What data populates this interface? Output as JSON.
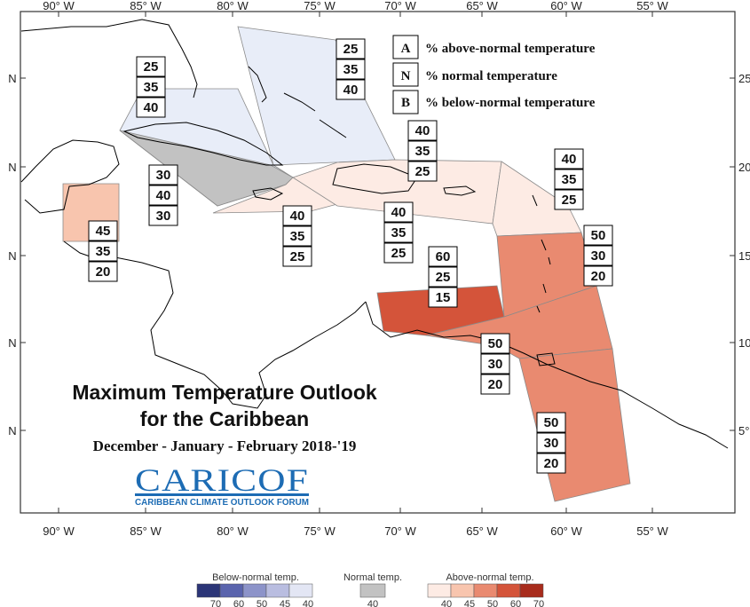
{
  "map": {
    "lon_ticks_top": [
      "90° W",
      "85° W",
      "80° W",
      "75° W",
      "70° W",
      "65° W",
      "60° W",
      "55° W"
    ],
    "lon_ticks_bottom": [
      "90° W",
      "85° W",
      "80° W",
      "75° W",
      "70° W",
      "65° W",
      "60° W",
      "55° W"
    ],
    "lat_ticks_left": [
      "N",
      "N",
      "N",
      "N",
      "N"
    ],
    "lat_ticks_right": [
      "25°",
      "20°",
      "15°",
      "10°",
      "5°"
    ],
    "frame_color": "#333333",
    "coast_color": "#000000"
  },
  "legend_key": [
    {
      "letter": "A",
      "text": "% above-normal temperature"
    },
    {
      "letter": "N",
      "text": "% normal temperature"
    },
    {
      "letter": "B",
      "text": "% below-normal temperature"
    }
  ],
  "regions": [
    {
      "id": "bahamas",
      "fill": "#e8edf8",
      "probs": [
        "25",
        "35",
        "40"
      ]
    },
    {
      "id": "cuba",
      "fill": "#e8edf8",
      "probs": [
        "25",
        "35",
        "40"
      ]
    },
    {
      "id": "cayman-jamaica-sea",
      "fill": "#c2c2c2",
      "probs": [
        "30",
        "40",
        "30"
      ]
    },
    {
      "id": "jamaica-haiti",
      "fill": "#fdebe4",
      "probs": [
        "40",
        "35",
        "25"
      ]
    },
    {
      "id": "hispaniola-pr",
      "fill": "#fdebe4",
      "probs": [
        "40",
        "35",
        "25"
      ]
    },
    {
      "id": "turks-north",
      "fill": "#fdebe4",
      "probs": [
        "40",
        "35",
        "25"
      ]
    },
    {
      "id": "leeward-islands",
      "fill": "#fdebe4",
      "probs": [
        "40",
        "35",
        "25"
      ]
    },
    {
      "id": "belize",
      "fill": "#f8c5ae",
      "probs": [
        "45",
        "35",
        "20"
      ]
    },
    {
      "id": "windward-islands",
      "fill": "#e98a70",
      "probs": [
        "50",
        "30",
        "20"
      ]
    },
    {
      "id": "abc-islands",
      "fill": "#d4543a",
      "probs": [
        "60",
        "25",
        "15"
      ]
    },
    {
      "id": "trinidad-venezuela",
      "fill": "#e98a70",
      "probs": [
        "50",
        "30",
        "20"
      ]
    },
    {
      "id": "guianas",
      "fill": "#e98a70",
      "probs": [
        "50",
        "30",
        "20"
      ]
    }
  ],
  "title": {
    "line1": "Maximum Temperature Outlook",
    "line2": "for the Caribbean",
    "line3": "December - January - February 2018-'19"
  },
  "logo": {
    "name": "CARICOF",
    "tagline": "CARIBBEAN CLIMATE OUTLOOK FORUM"
  },
  "colorbar": {
    "below": {
      "title": "Below-normal temp.",
      "colors": [
        "#2b3577",
        "#5a64ad",
        "#8c93c9",
        "#b9bde0",
        "#e3e6f4"
      ],
      "ticks": [
        "70",
        "60",
        "50",
        "45",
        "40"
      ]
    },
    "normal": {
      "title": "Normal temp.",
      "color": "#c2c2c2",
      "tick": "40"
    },
    "above": {
      "title": "Above-normal temp.",
      "colors": [
        "#fdebe4",
        "#f8c5ae",
        "#e98a70",
        "#d4543a",
        "#a82c1c"
      ],
      "ticks": [
        "40",
        "45",
        "50",
        "60",
        "70"
      ]
    }
  }
}
